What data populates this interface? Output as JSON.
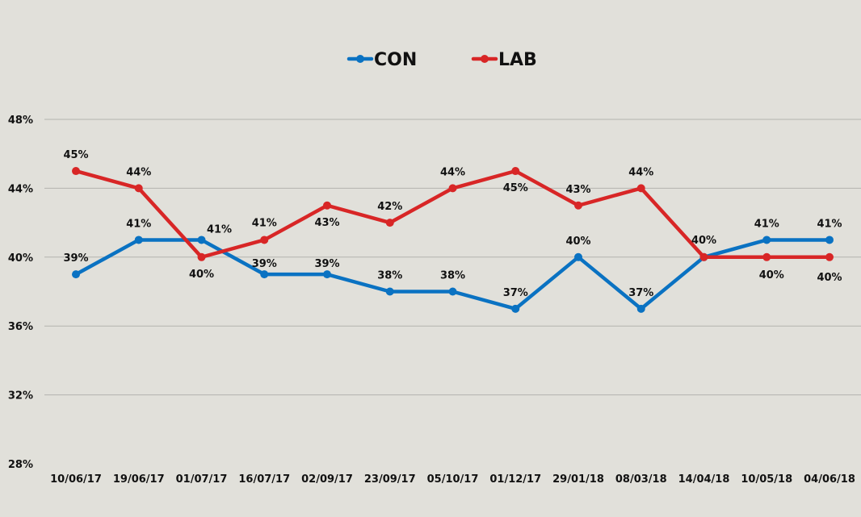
{
  "chart_data": {
    "type": "line",
    "title": "",
    "xlabel": "",
    "ylabel": "",
    "categories": [
      "10/06/17",
      "19/06/17",
      "01/07/17",
      "16/07/17",
      "02/09/17",
      "23/09/17",
      "05/10/17",
      "01/12/17",
      "29/01/18",
      "08/03/18",
      "14/04/18",
      "10/05/18",
      "04/06/18"
    ],
    "ylim": [
      28,
      48
    ],
    "yticks": [
      28,
      32,
      36,
      40,
      44,
      48
    ],
    "ytick_labels": [
      "28%",
      "32%",
      "36%",
      "40%",
      "44%",
      "48%"
    ],
    "grid": "horizontal",
    "legend_position": "top",
    "series": [
      {
        "name": "CON",
        "color": "#0a72c2",
        "values": [
          39,
          41,
          41,
          39,
          39,
          38,
          38,
          37,
          40,
          37,
          40,
          41,
          41
        ],
        "labels": [
          "39%",
          "41%",
          "41%",
          "39%",
          "39%",
          "38%",
          "38%",
          "37%",
          "40%",
          "37%",
          "40%",
          "41%",
          "41%"
        ]
      },
      {
        "name": "LAB",
        "color": "#d82626",
        "values": [
          45,
          44,
          40,
          41,
          43,
          42,
          44,
          45,
          43,
          44,
          40,
          40,
          40
        ],
        "labels": [
          "45%",
          "44%",
          "40%",
          "41%",
          "43%",
          "42%",
          "44%",
          "45%",
          "43%",
          "44%",
          "",
          "40%",
          "40%"
        ]
      }
    ]
  }
}
